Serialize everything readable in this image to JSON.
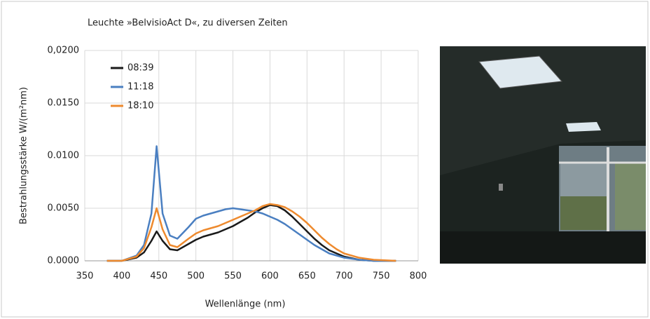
{
  "chart_data": {
    "type": "line",
    "title": "Leuchte »BelvisioAct D«, zu diversen Zeiten",
    "x_label": "Wellenlänge (nm)",
    "y_label": "Bestrahlungsstärke W/(m²nm)",
    "x": [
      380,
      400,
      420,
      430,
      440,
      447,
      455,
      465,
      475,
      490,
      500,
      510,
      520,
      530,
      540,
      550,
      560,
      570,
      580,
      590,
      600,
      610,
      620,
      630,
      640,
      650,
      660,
      670,
      680,
      690,
      700,
      720,
      740,
      770
    ],
    "series": [
      {
        "name": "08:39",
        "color": "#1a1a1a",
        "values": [
          0,
          0,
          0.0003,
          0.0008,
          0.0019,
          0.0028,
          0.0019,
          0.0011,
          0.001,
          0.0016,
          0.002,
          0.0023,
          0.0025,
          0.0027,
          0.003,
          0.0033,
          0.0037,
          0.0041,
          0.0046,
          0.005,
          0.0053,
          0.0052,
          0.0048,
          0.0042,
          0.0035,
          0.0028,
          0.0021,
          0.0015,
          0.001,
          0.0007,
          0.0004,
          0.0001,
          0,
          0
        ]
      },
      {
        "name": "11:18",
        "color": "#4a7fc1",
        "values": [
          0,
          0,
          0.0005,
          0.0015,
          0.0045,
          0.0109,
          0.0045,
          0.0024,
          0.0021,
          0.0032,
          0.004,
          0.0043,
          0.0045,
          0.0047,
          0.0049,
          0.005,
          0.0049,
          0.0048,
          0.0047,
          0.0045,
          0.0042,
          0.0039,
          0.0035,
          0.003,
          0.0025,
          0.002,
          0.0015,
          0.0011,
          0.0007,
          0.0005,
          0.0003,
          0.0001,
          0,
          0
        ]
      },
      {
        "name": "18:10",
        "color": "#ee8a2e",
        "values": [
          0,
          0,
          0.0004,
          0.0012,
          0.0032,
          0.005,
          0.003,
          0.0015,
          0.0013,
          0.0021,
          0.0026,
          0.0029,
          0.0031,
          0.0033,
          0.0036,
          0.0039,
          0.0042,
          0.0045,
          0.0048,
          0.0052,
          0.0054,
          0.0053,
          0.0051,
          0.0047,
          0.0042,
          0.0036,
          0.0029,
          0.0022,
          0.0016,
          0.0011,
          0.0007,
          0.0003,
          0.0001,
          0
        ]
      }
    ],
    "xlim": [
      350,
      800
    ],
    "xticks": [
      350,
      400,
      450,
      500,
      550,
      600,
      650,
      700,
      750,
      800
    ],
    "ylim": [
      0,
      0.02
    ],
    "yticks": [
      {
        "value": 0,
        "label": "0.0000"
      },
      {
        "value": 0.005,
        "label": "0.0050"
      },
      {
        "value": 0.01,
        "label": "0.0100"
      },
      {
        "value": 0.015,
        "label": "0.0150"
      },
      {
        "value": 0.02,
        "label": "0,0200"
      }
    ],
    "grid": true,
    "legend": "upper-left"
  }
}
